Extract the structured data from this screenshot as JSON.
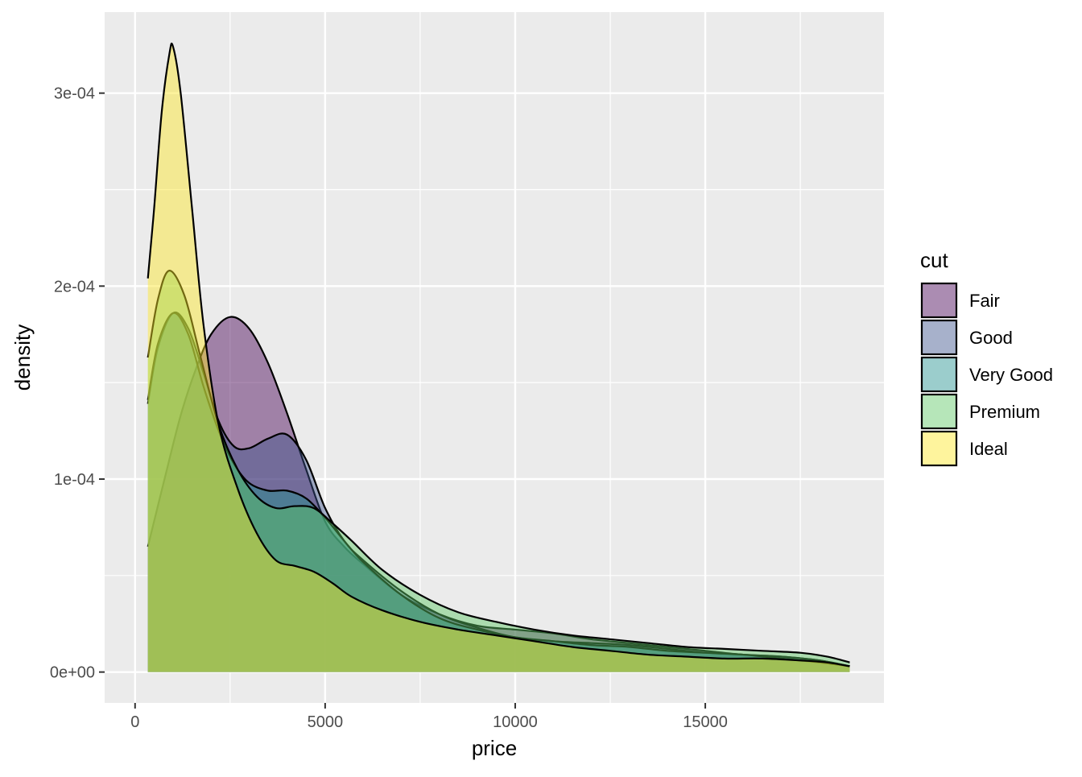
{
  "chart_data": {
    "type": "area",
    "subtype": "density",
    "xlabel": "price",
    "ylabel": "density",
    "xlim": [
      -800,
      19700
    ],
    "ylim": [
      -1.6e-05,
      0.000342
    ],
    "x_ticks": [
      0,
      5000,
      10000,
      15000
    ],
    "x_tick_labels": [
      "0",
      "5000",
      "10000",
      "15000"
    ],
    "x_minor_ticks": [
      2500,
      7500,
      12500,
      17500
    ],
    "y_ticks": [
      0,
      0.0001,
      0.0002,
      0.0003
    ],
    "y_tick_labels": [
      "0e+00",
      "1e-04",
      "2e-04",
      "3e-04"
    ],
    "y_minor_ticks": [
      5e-05,
      0.00015,
      0.00025
    ],
    "grid": true,
    "panel_background": "#ebebeb",
    "fill_opacity": 0.45,
    "legend": {
      "title": "cut",
      "position": "right"
    },
    "series": [
      {
        "name": "Fair",
        "color": "#440154",
        "points": [
          [
            337,
            6.5e-05
          ],
          [
            800,
            0.000102
          ],
          [
            1200,
            0.000133
          ],
          [
            1600,
            0.000157
          ],
          [
            2000,
            0.000175
          ],
          [
            2500,
            0.000184
          ],
          [
            3000,
            0.000178
          ],
          [
            3500,
            0.00016
          ],
          [
            4000,
            0.000134
          ],
          [
            4500,
            0.000105
          ],
          [
            5000,
            7.8e-05
          ],
          [
            5500,
            6.5e-05
          ],
          [
            6000,
            5.6e-05
          ],
          [
            7000,
            4e-05
          ],
          [
            8000,
            3e-05
          ],
          [
            9000,
            2.4e-05
          ],
          [
            10000,
            2.2e-05
          ],
          [
            11000,
            2e-05
          ],
          [
            12000,
            1.7e-05
          ],
          [
            13000,
            1.5e-05
          ],
          [
            14000,
            1.3e-05
          ],
          [
            15000,
            1.1e-05
          ],
          [
            16000,
            9e-06
          ],
          [
            17000,
            8e-06
          ],
          [
            18000,
            6e-06
          ],
          [
            18800,
            3e-06
          ]
        ]
      },
      {
        "name": "Good",
        "color": "#3b528b",
        "points": [
          [
            337,
            0.000139
          ],
          [
            600,
            0.000168
          ],
          [
            1000,
            0.000186
          ],
          [
            1400,
            0.000178
          ],
          [
            1800,
            0.000155
          ],
          [
            2200,
            0.00013
          ],
          [
            2600,
            0.000117
          ],
          [
            3000,
            0.000116
          ],
          [
            3500,
            0.000121
          ],
          [
            4000,
            0.000123
          ],
          [
            4500,
            0.00011
          ],
          [
            5000,
            8.5e-05
          ],
          [
            5500,
            6.8e-05
          ],
          [
            6000,
            5.8e-05
          ],
          [
            7000,
            4.2e-05
          ],
          [
            8000,
            3e-05
          ],
          [
            9000,
            2.3e-05
          ],
          [
            10000,
            1.8e-05
          ],
          [
            11000,
            1.6e-05
          ],
          [
            12000,
            1.5e-05
          ],
          [
            13000,
            1.4e-05
          ],
          [
            14000,
            1.2e-05
          ],
          [
            15000,
            1e-05
          ],
          [
            16000,
            9e-06
          ],
          [
            17000,
            8e-06
          ],
          [
            18000,
            6e-06
          ],
          [
            18800,
            3e-06
          ]
        ]
      },
      {
        "name": "Very Good",
        "color": "#21908d",
        "points": [
          [
            337,
            0.000141
          ],
          [
            600,
            0.00017
          ],
          [
            1000,
            0.000186
          ],
          [
            1400,
            0.000175
          ],
          [
            1800,
            0.000148
          ],
          [
            2200,
            0.000125
          ],
          [
            2600,
            0.000108
          ],
          [
            3000,
            9.8e-05
          ],
          [
            3500,
            9.4e-05
          ],
          [
            4000,
            9.4e-05
          ],
          [
            4500,
            9e-05
          ],
          [
            5000,
            8e-05
          ],
          [
            5500,
            6.8e-05
          ],
          [
            6000,
            5.7e-05
          ],
          [
            7000,
            4e-05
          ],
          [
            8000,
            2.8e-05
          ],
          [
            9000,
            2.2e-05
          ],
          [
            10000,
            1.8e-05
          ],
          [
            11000,
            1.6e-05
          ],
          [
            12000,
            1.4e-05
          ],
          [
            13000,
            1.3e-05
          ],
          [
            14000,
            1.1e-05
          ],
          [
            15000,
            1e-05
          ],
          [
            16000,
            9e-06
          ],
          [
            17000,
            7e-06
          ],
          [
            18000,
            5e-06
          ],
          [
            18800,
            3e-06
          ]
        ]
      },
      {
        "name": "Premium",
        "color": "#5dc863",
        "points": [
          [
            337,
            0.000163
          ],
          [
            600,
            0.000193
          ],
          [
            900,
            0.000208
          ],
          [
            1300,
            0.000195
          ],
          [
            1700,
            0.000165
          ],
          [
            2200,
            0.000128
          ],
          [
            2700,
            0.000105
          ],
          [
            3200,
            9.1e-05
          ],
          [
            3700,
            8.5e-05
          ],
          [
            4200,
            8.6e-05
          ],
          [
            4700,
            8.5e-05
          ],
          [
            5200,
            7.7e-05
          ],
          [
            5700,
            6.8e-05
          ],
          [
            6500,
            5.3e-05
          ],
          [
            7500,
            4e-05
          ],
          [
            8500,
            3.1e-05
          ],
          [
            9500,
            2.6e-05
          ],
          [
            10500,
            2.2e-05
          ],
          [
            11500,
            1.9e-05
          ],
          [
            12500,
            1.7e-05
          ],
          [
            13500,
            1.5e-05
          ],
          [
            14500,
            1.3e-05
          ],
          [
            15500,
            1.2e-05
          ],
          [
            16500,
            1.1e-05
          ],
          [
            17500,
            1e-05
          ],
          [
            18200,
            8e-06
          ],
          [
            18800,
            5e-06
          ]
        ]
      },
      {
        "name": "Ideal",
        "color": "#fde725",
        "points": [
          [
            337,
            0.000204
          ],
          [
            500,
            0.00024
          ],
          [
            700,
            0.00029
          ],
          [
            900,
            0.00032
          ],
          [
            1000,
            0.000324
          ],
          [
            1200,
            0.0003
          ],
          [
            1500,
            0.00024
          ],
          [
            1800,
            0.00018
          ],
          [
            2200,
            0.000128
          ],
          [
            2700,
            9.5e-05
          ],
          [
            3200,
            7.2e-05
          ],
          [
            3700,
            5.8e-05
          ],
          [
            4200,
            5.5e-05
          ],
          [
            4700,
            5.2e-05
          ],
          [
            5200,
            4.6e-05
          ],
          [
            5700,
            3.9e-05
          ],
          [
            6500,
            3.2e-05
          ],
          [
            7500,
            2.6e-05
          ],
          [
            8500,
            2.2e-05
          ],
          [
            9500,
            1.9e-05
          ],
          [
            10500,
            1.6e-05
          ],
          [
            11500,
            1.3e-05
          ],
          [
            12500,
            1.1e-05
          ],
          [
            13500,
            9e-06
          ],
          [
            14500,
            8e-06
          ],
          [
            15500,
            7e-06
          ],
          [
            16500,
            7e-06
          ],
          [
            17500,
            6e-06
          ],
          [
            18200,
            5e-06
          ],
          [
            18800,
            3e-06
          ]
        ]
      }
    ]
  }
}
